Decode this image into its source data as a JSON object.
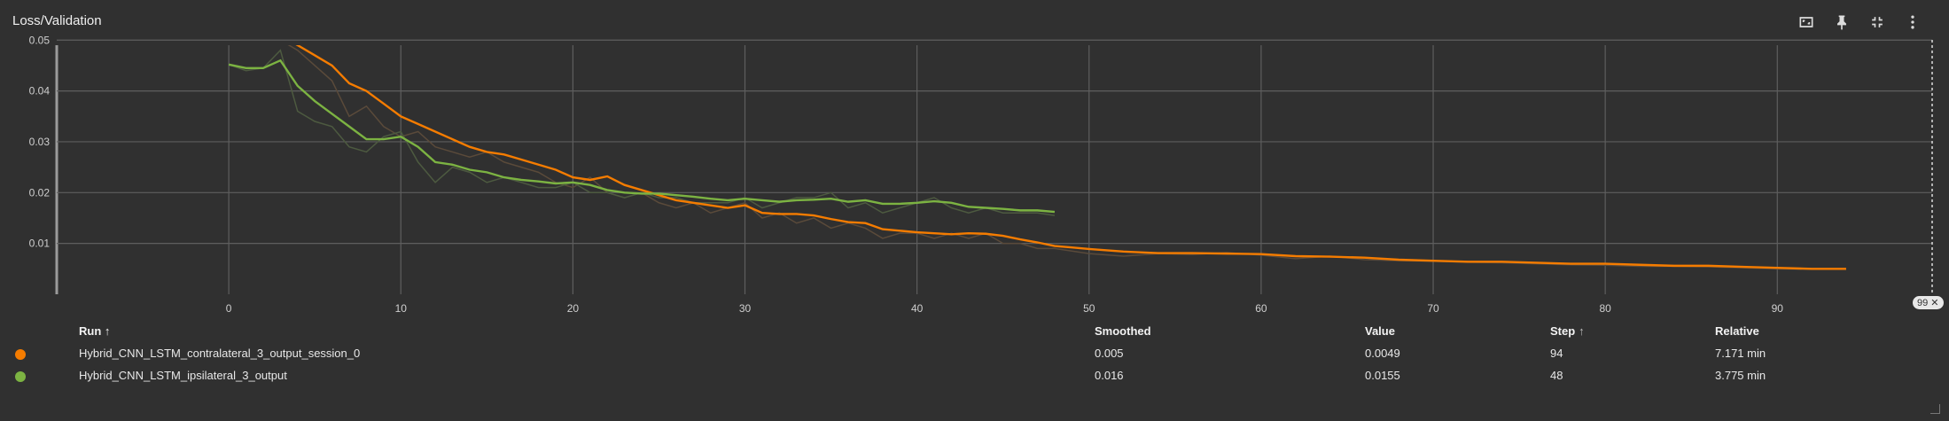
{
  "card": {
    "title": "Loss/Validation"
  },
  "toolbar": {
    "buttons": [
      {
        "name": "fit-domain-button",
        "icon": "fit-domain-icon"
      },
      {
        "name": "pin-button",
        "icon": "pin-icon"
      },
      {
        "name": "collapse-button",
        "icon": "collapse-icon"
      },
      {
        "name": "more-button",
        "icon": "more-vertical-icon"
      }
    ]
  },
  "step_badge": "99 ✕",
  "chart_data": {
    "type": "line",
    "title": "Loss/Validation",
    "xlabel": "",
    "ylabel": "",
    "xlim": [
      -10,
      99
    ],
    "ylim": [
      0,
      0.049
    ],
    "x_ticks": [
      "0",
      "10",
      "20",
      "30",
      "40",
      "50",
      "60",
      "70",
      "80",
      "90"
    ],
    "y_ticks": [
      "0.01",
      "0.02",
      "0.03",
      "0.04",
      "0.05"
    ],
    "grid": true,
    "series": [
      {
        "name": "Hybrid_CNN_LSTM_contralateral_3_output_session_0",
        "color": "#f57c00",
        "raw_color": "#5a4a3a",
        "x": [
          3,
          4,
          5,
          6,
          7,
          8,
          9,
          10,
          11,
          12,
          13,
          14,
          15,
          16,
          17,
          18,
          19,
          20,
          21,
          22,
          23,
          24,
          25,
          26,
          27,
          28,
          29,
          30,
          31,
          32,
          33,
          34,
          35,
          36,
          37,
          38,
          39,
          40,
          41,
          42,
          43,
          44,
          45,
          46,
          47,
          48,
          49,
          50,
          52,
          54,
          56,
          58,
          60,
          62,
          64,
          66,
          68,
          70,
          72,
          74,
          76,
          78,
          80,
          82,
          84,
          86,
          88,
          90,
          92,
          94
        ],
        "smoothed": [
          0.051,
          0.049,
          0.047,
          0.045,
          0.0415,
          0.04,
          0.0375,
          0.035,
          0.0335,
          0.032,
          0.0305,
          0.029,
          0.028,
          0.0275,
          0.0265,
          0.0255,
          0.0245,
          0.023,
          0.0225,
          0.0232,
          0.0215,
          0.0205,
          0.0195,
          0.0185,
          0.018,
          0.0175,
          0.017,
          0.0175,
          0.016,
          0.0158,
          0.0158,
          0.0155,
          0.0148,
          0.0142,
          0.014,
          0.0128,
          0.0125,
          0.0122,
          0.012,
          0.0118,
          0.012,
          0.0119,
          0.0115,
          0.0108,
          0.0102,
          0.0095,
          0.0092,
          0.0089,
          0.0084,
          0.0081,
          0.0081,
          0.008,
          0.0079,
          0.0075,
          0.0074,
          0.0072,
          0.0068,
          0.0066,
          0.0064,
          0.0064,
          0.0062,
          0.006,
          0.006,
          0.0058,
          0.0056,
          0.0056,
          0.0054,
          0.0052,
          0.005,
          0.005
        ],
        "raw": [
          0.05,
          0.048,
          0.045,
          0.042,
          0.035,
          0.037,
          0.033,
          0.031,
          0.032,
          0.029,
          0.028,
          0.027,
          0.028,
          0.026,
          0.025,
          0.024,
          0.022,
          0.021,
          0.023,
          0.02,
          0.019,
          0.02,
          0.018,
          0.017,
          0.018,
          0.016,
          0.017,
          0.018,
          0.015,
          0.016,
          0.014,
          0.015,
          0.013,
          0.014,
          0.013,
          0.011,
          0.012,
          0.012,
          0.011,
          0.012,
          0.011,
          0.012,
          0.01,
          0.01,
          0.009,
          0.009,
          0.0085,
          0.008,
          0.0075,
          0.008,
          0.0078,
          0.0082,
          0.0077,
          0.007,
          0.0075,
          0.0068,
          0.0066,
          0.0065,
          0.0063,
          0.0062,
          0.006,
          0.0058,
          0.0057,
          0.0055,
          0.0055,
          0.0054,
          0.0052,
          0.005,
          0.0049,
          0.0049
        ]
      },
      {
        "name": "Hybrid_CNN_LSTM_ipsilateral_3_output",
        "color": "#7cb342",
        "raw_color": "#4d5a40",
        "x": [
          0,
          1,
          2,
          3,
          4,
          5,
          6,
          7,
          8,
          9,
          10,
          11,
          12,
          13,
          14,
          15,
          16,
          17,
          18,
          19,
          20,
          21,
          22,
          23,
          24,
          25,
          26,
          27,
          28,
          29,
          30,
          31,
          32,
          33,
          34,
          35,
          36,
          37,
          38,
          39,
          40,
          41,
          42,
          43,
          44,
          45,
          46,
          47,
          48
        ],
        "smoothed": [
          0.0452,
          0.0445,
          0.0445,
          0.046,
          0.041,
          0.038,
          0.0355,
          0.033,
          0.0305,
          0.0305,
          0.031,
          0.029,
          0.026,
          0.0255,
          0.0245,
          0.024,
          0.023,
          0.0225,
          0.0222,
          0.0218,
          0.022,
          0.0215,
          0.0205,
          0.02,
          0.0198,
          0.0198,
          0.0195,
          0.0192,
          0.0188,
          0.0185,
          0.0188,
          0.0185,
          0.0182,
          0.0185,
          0.0186,
          0.0188,
          0.0182,
          0.0185,
          0.0178,
          0.0178,
          0.018,
          0.0183,
          0.018,
          0.0172,
          0.017,
          0.0168,
          0.0165,
          0.0165,
          0.0162
        ],
        "raw": [
          0.0452,
          0.044,
          0.0445,
          0.048,
          0.036,
          0.034,
          0.033,
          0.029,
          0.028,
          0.031,
          0.032,
          0.026,
          0.022,
          0.025,
          0.024,
          0.022,
          0.023,
          0.022,
          0.021,
          0.021,
          0.022,
          0.02,
          0.02,
          0.019,
          0.02,
          0.019,
          0.019,
          0.018,
          0.018,
          0.018,
          0.019,
          0.017,
          0.018,
          0.019,
          0.019,
          0.02,
          0.017,
          0.018,
          0.016,
          0.017,
          0.018,
          0.019,
          0.017,
          0.016,
          0.017,
          0.016,
          0.016,
          0.016,
          0.0155
        ]
      }
    ]
  },
  "table": {
    "headers": {
      "run": "Run ↑",
      "smoothed": "Smoothed",
      "value": "Value",
      "step": "Step",
      "step_sort": "↑",
      "relative": "Relative"
    },
    "rows": [
      {
        "run": "Hybrid_CNN_LSTM_contralateral_3_output_session_0",
        "smoothed": "0.005",
        "value": "0.0049",
        "step": "94",
        "relative": "7.171 min",
        "color": "#f57c00"
      },
      {
        "run": "Hybrid_CNN_LSTM_ipsilateral_3_output",
        "smoothed": "0.016",
        "value": "0.0155",
        "step": "48",
        "relative": "3.775 min",
        "color": "#7cb342"
      }
    ]
  }
}
